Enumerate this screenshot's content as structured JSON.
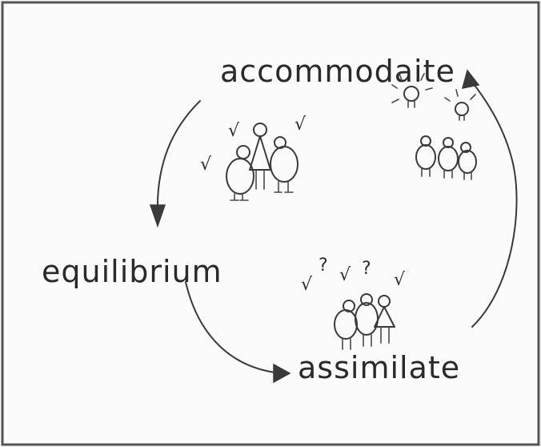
{
  "stages": {
    "accommodate": "accommodaite",
    "equilibrium": "equilibrium",
    "assimilate": "assimilate"
  },
  "marks": {
    "check": "√",
    "question": "?"
  },
  "colors": {
    "ink": "#2a2a2a",
    "paper": "#fbfbfb",
    "border": "#555555"
  },
  "icons": [
    "arrow-icon",
    "lightbulb-icon",
    "person-icon",
    "check-mark-icon",
    "question-mark-icon"
  ]
}
